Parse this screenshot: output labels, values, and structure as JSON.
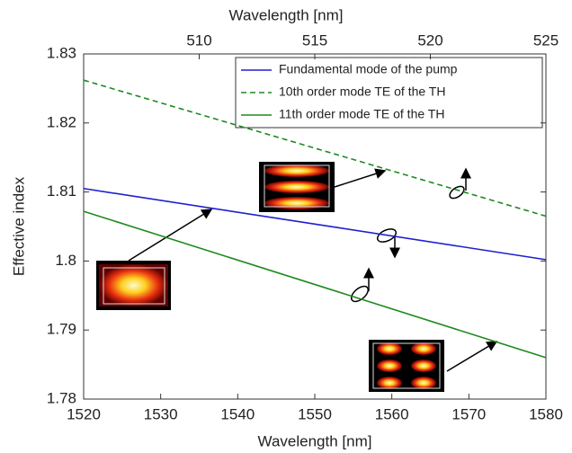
{
  "chart_data": {
    "type": "line",
    "xlabel": "Wavelength [nm]",
    "x2label": "Wavelength [nm]",
    "ylabel": "Effective index",
    "x": [
      1520,
      1580
    ],
    "series": [
      {
        "name": "Fundamental mode of the pump",
        "color": "#1f1fd0",
        "linestyle": "solid",
        "values": [
          1.8105,
          1.8002
        ]
      },
      {
        "name": "10th order mode TE of the TH",
        "color": "#1e8a1e",
        "linestyle": "dashed",
        "values": [
          1.8262,
          1.8065
        ]
      },
      {
        "name": "11th order mode TE of the TH",
        "color": "#1e8a1e",
        "linestyle": "solid",
        "values": [
          1.8072,
          1.786
        ]
      }
    ],
    "xlim": [
      1520,
      1580
    ],
    "xticks": [
      1520,
      1530,
      1540,
      1550,
      1560,
      1570,
      1580
    ],
    "x2lim": [
      505,
      525
    ],
    "x2ticks": [
      510,
      515,
      520,
      525
    ],
    "ylim": [
      1.78,
      1.83
    ],
    "yticks": [
      1.78,
      1.79,
      1.8,
      1.81,
      1.82,
      1.83
    ],
    "legend": "upper right"
  }
}
